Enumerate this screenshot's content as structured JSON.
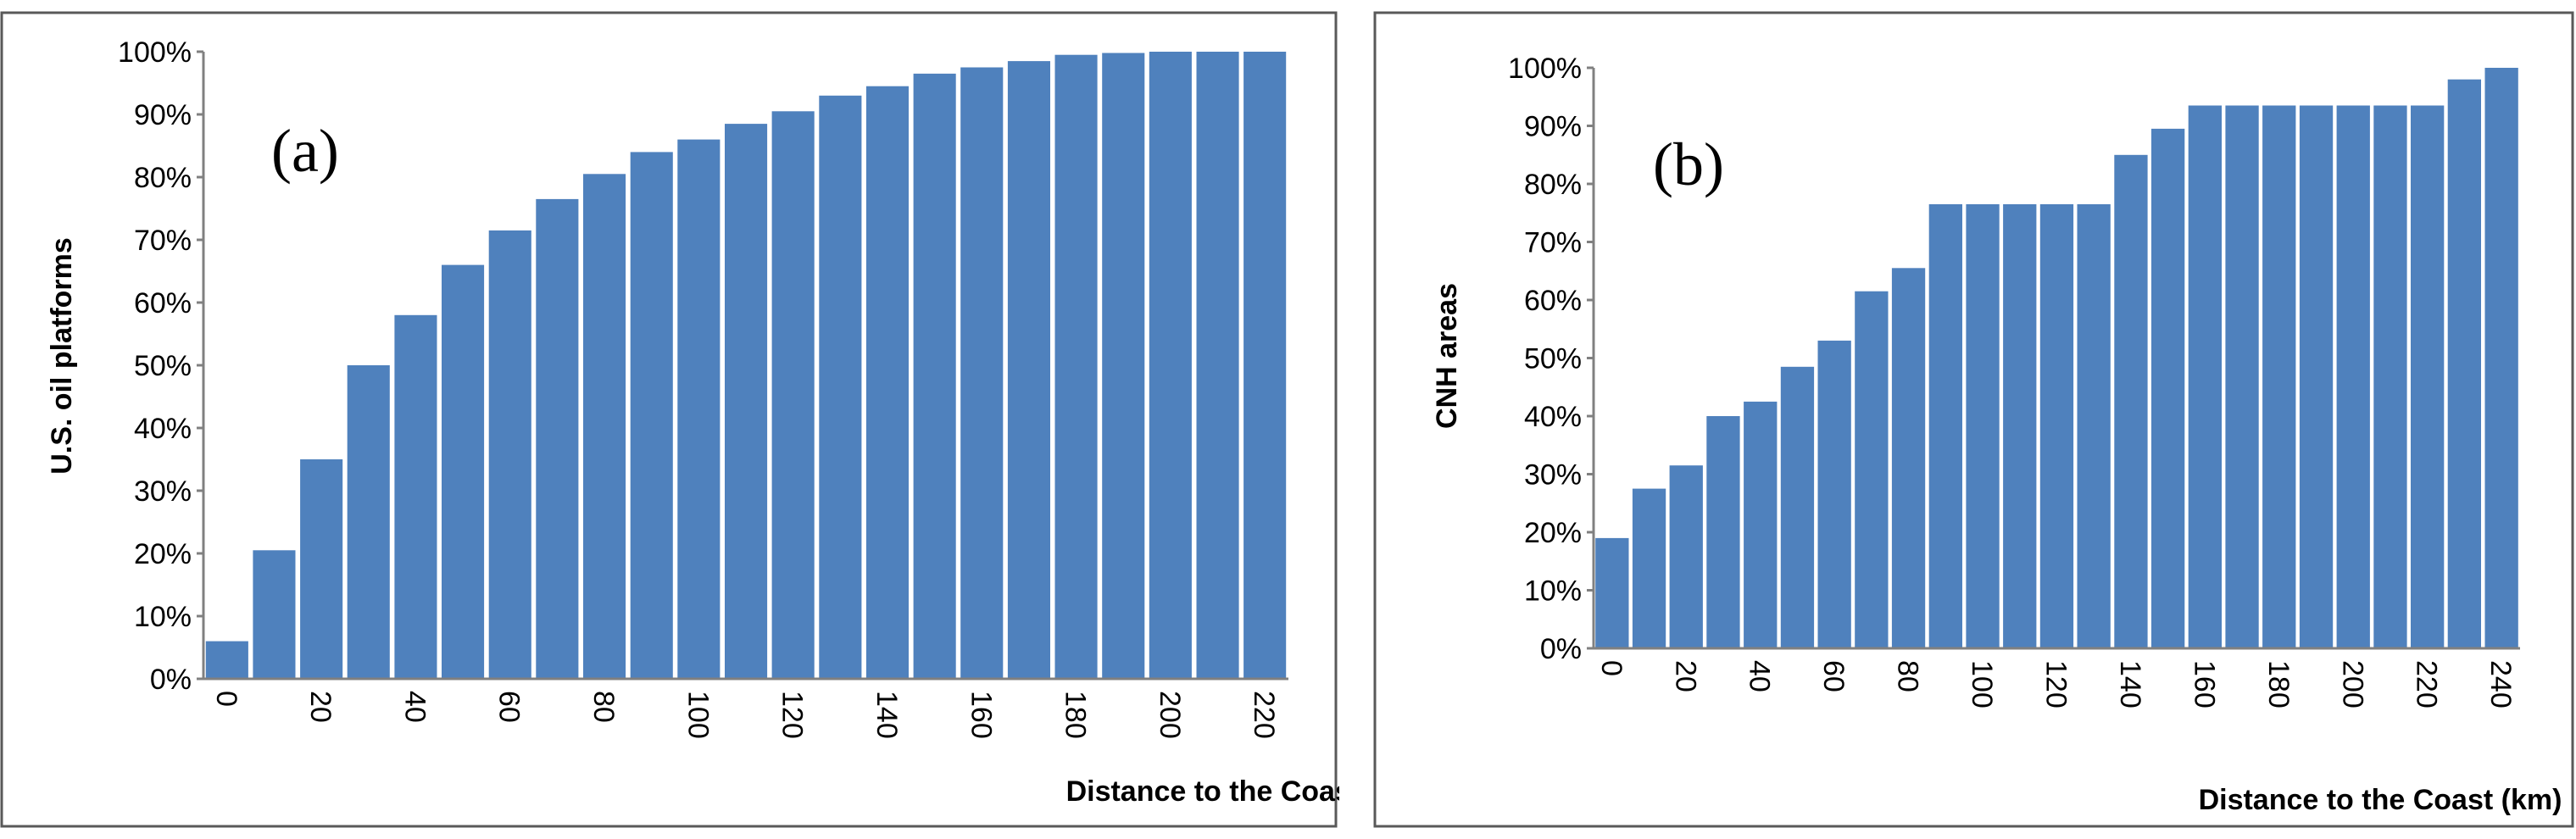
{
  "chart_data": [
    {
      "type": "bar",
      "panel_label": "(a)",
      "xlabel": "Distance to the Coast (km)",
      "ylabel": "U.S. oil platforms",
      "categories": [
        "0",
        "10",
        "20",
        "30",
        "40",
        "50",
        "60",
        "70",
        "80",
        "90",
        "100",
        "110",
        "120",
        "130",
        "140",
        "150",
        "160",
        "170",
        "180",
        "190",
        "200",
        "210",
        "220"
      ],
      "x_tick_labels": [
        "0",
        "20",
        "40",
        "60",
        "80",
        "100",
        "120",
        "140",
        "160",
        "180",
        "200",
        "220"
      ],
      "values": [
        6,
        20.5,
        35,
        50,
        58,
        66,
        71.5,
        76.5,
        80.5,
        84,
        86,
        88.5,
        90.5,
        93,
        94.5,
        96.5,
        97.5,
        98.5,
        99.5,
        99.8,
        100,
        100,
        100
      ],
      "ylim": [
        0,
        100
      ],
      "y_tick_labels": [
        "0%",
        "10%",
        "20%",
        "30%",
        "40%",
        "50%",
        "60%",
        "70%",
        "80%",
        "90%",
        "100%"
      ],
      "bar_color": "#4f81bd",
      "grid": false
    },
    {
      "type": "bar",
      "panel_label": "(b)",
      "xlabel": "Distance to the Coast (km)",
      "ylabel": "CNH areas",
      "categories": [
        "0",
        "10",
        "20",
        "30",
        "40",
        "50",
        "60",
        "70",
        "80",
        "90",
        "100",
        "110",
        "120",
        "130",
        "140",
        "150",
        "160",
        "170",
        "180",
        "190",
        "200",
        "210",
        "220",
        "230",
        "240"
      ],
      "x_tick_labels": [
        "0",
        "20",
        "40",
        "60",
        "80",
        "100",
        "120",
        "140",
        "160",
        "180",
        "200",
        "220",
        "240"
      ],
      "values": [
        19,
        27.5,
        31.5,
        40,
        42.5,
        48.5,
        53,
        61.5,
        65.5,
        76.5,
        76.5,
        76.5,
        76.5,
        76.5,
        85,
        89.5,
        93.5,
        93.5,
        93.5,
        93.5,
        93.5,
        93.5,
        93.5,
        98,
        100
      ],
      "ylim": [
        0,
        100
      ],
      "y_tick_labels": [
        "0%",
        "10%",
        "20%",
        "30%",
        "40%",
        "50%",
        "60%",
        "70%",
        "80%",
        "90%",
        "100%"
      ],
      "bar_color": "#4f81bd",
      "grid": false
    }
  ]
}
